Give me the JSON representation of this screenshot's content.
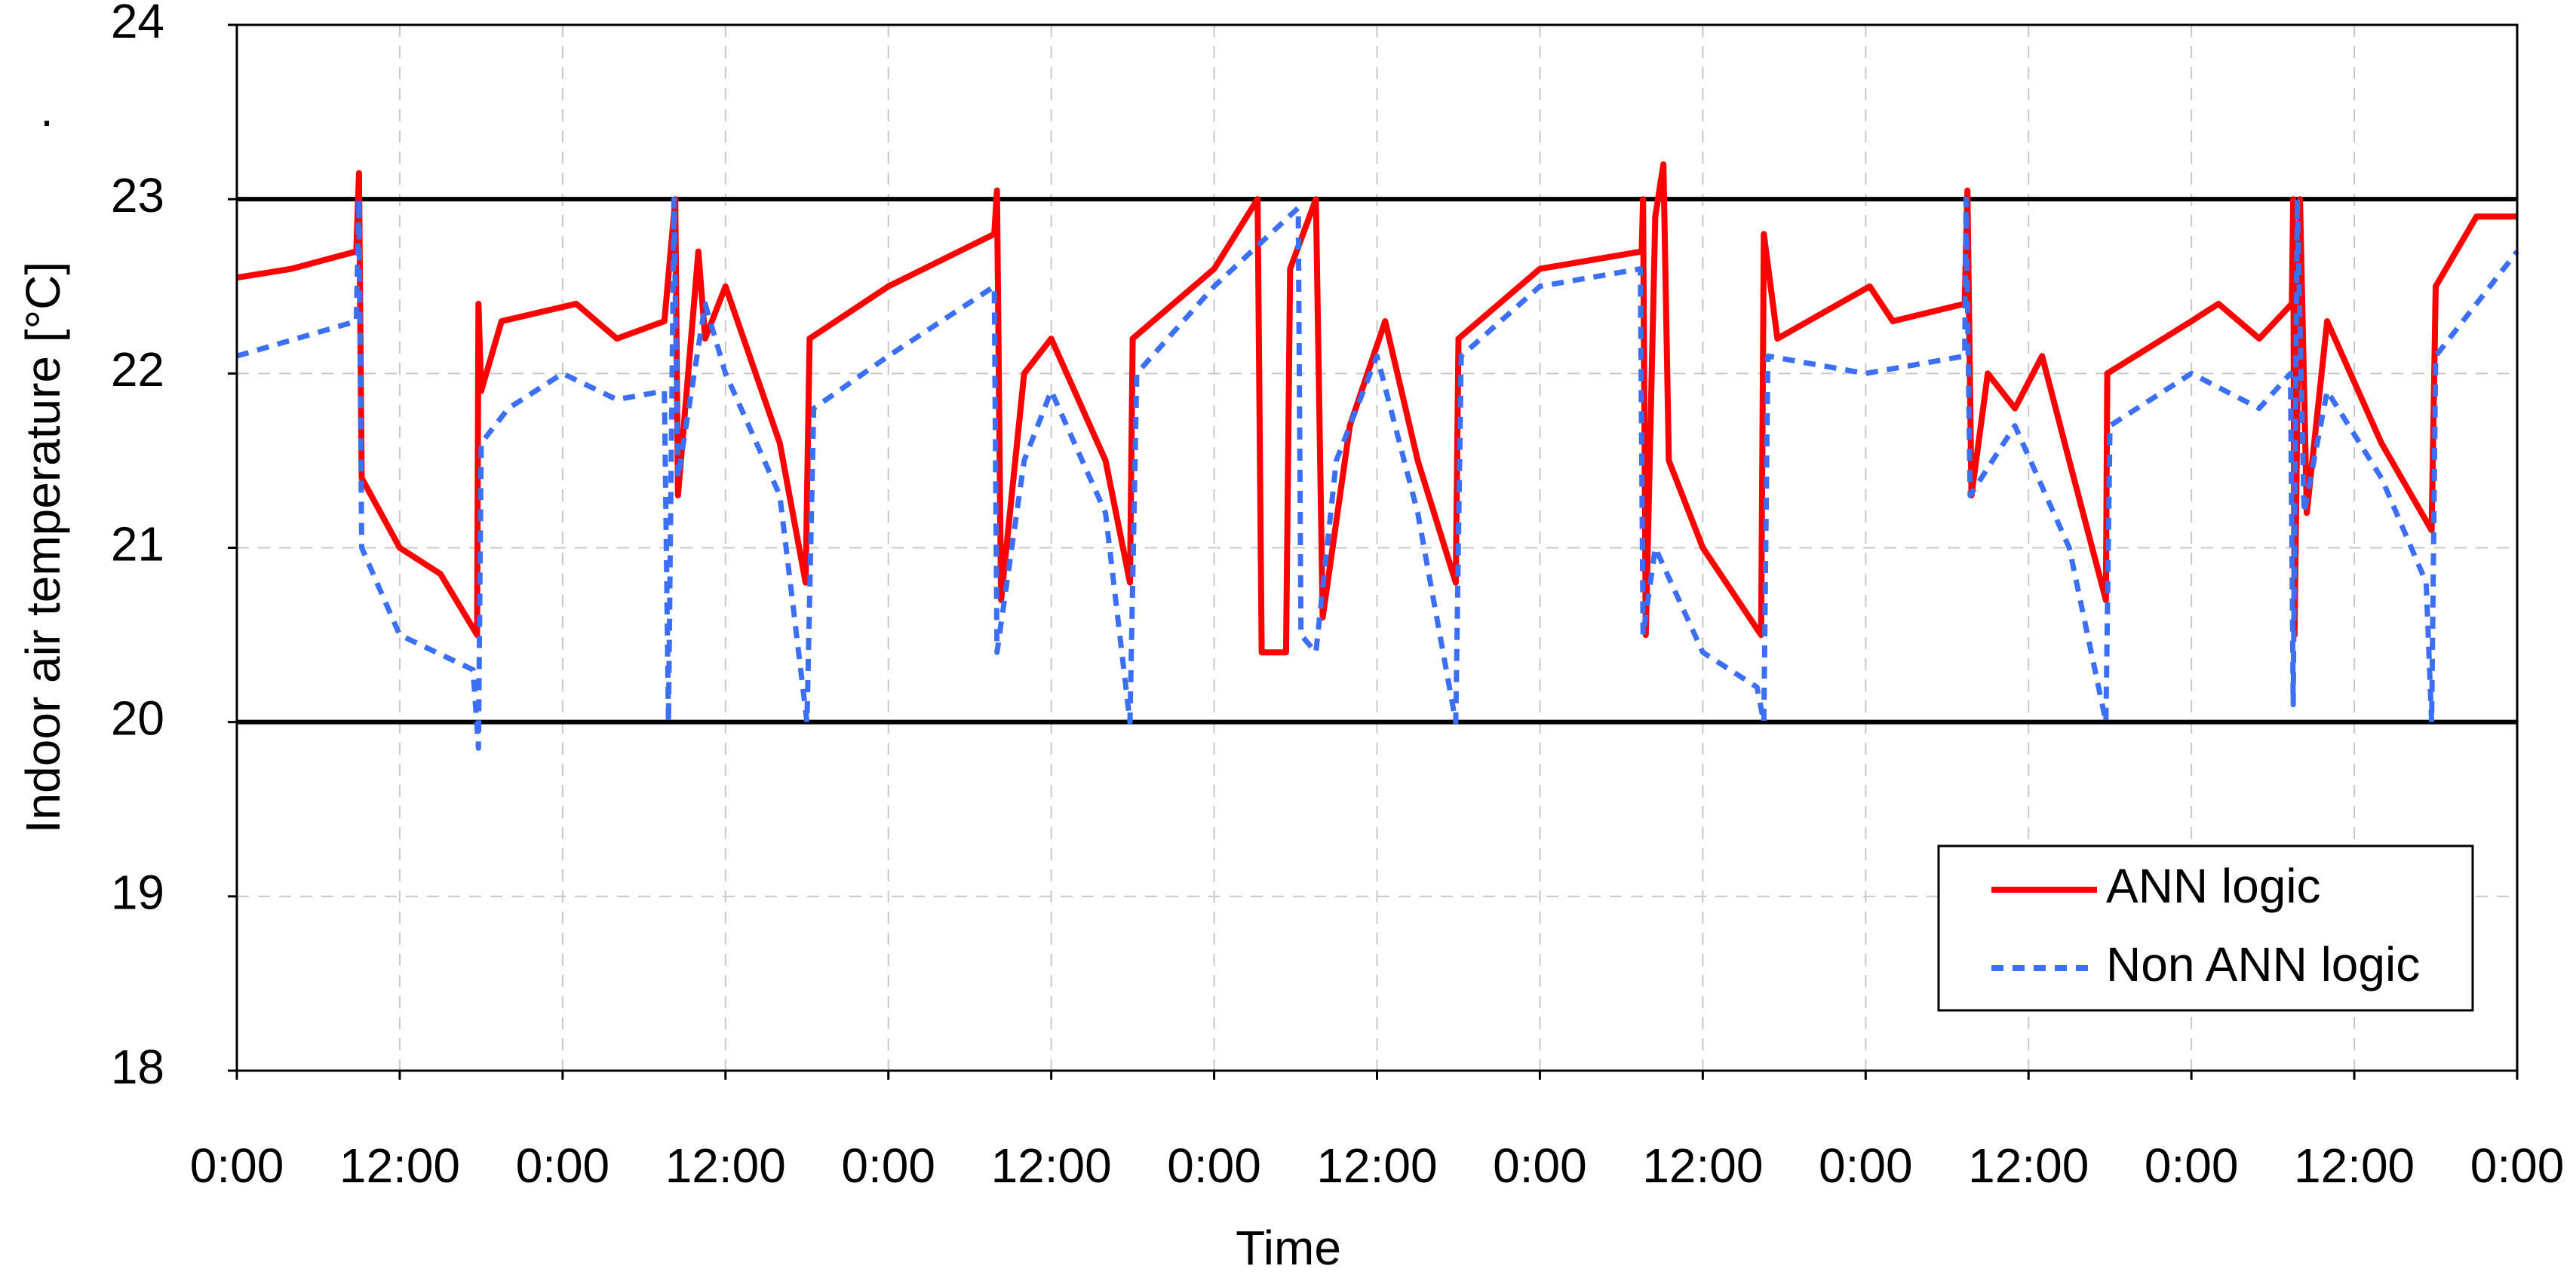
{
  "chart_data": {
    "type": "line",
    "x_label": "Time",
    "y_label": "Indoor air temperature [°C]",
    "annotation": ".",
    "xlim": [
      0,
      168
    ],
    "ylim": [
      18,
      24
    ],
    "xticks": [
      {
        "value": 0,
        "label": "0:00"
      },
      {
        "value": 12,
        "label": "12:00"
      },
      {
        "value": 24,
        "label": "0:00"
      },
      {
        "value": 36,
        "label": "12:00"
      },
      {
        "value": 48,
        "label": "0:00"
      },
      {
        "value": 60,
        "label": "12:00"
      },
      {
        "value": 72,
        "label": "0:00"
      },
      {
        "value": 84,
        "label": "12:00"
      },
      {
        "value": 96,
        "label": "0:00"
      },
      {
        "value": 108,
        "label": "12:00"
      },
      {
        "value": 120,
        "label": "0:00"
      },
      {
        "value": 132,
        "label": "12:00"
      },
      {
        "value": 144,
        "label": "0:00"
      },
      {
        "value": 156,
        "label": "12:00"
      },
      {
        "value": 168,
        "label": "0:00"
      }
    ],
    "yticks": [
      18,
      19,
      20,
      21,
      22,
      23,
      24
    ],
    "grid": true,
    "reference_lines": [
      20,
      23
    ],
    "legend": "lower right",
    "series": [
      {
        "name": "ANN logic",
        "color": "#ff0000",
        "dashed": false,
        "x": [
          0,
          4,
          8.8,
          9,
          9.2,
          12,
          15,
          17.7,
          17.8,
          18,
          19.5,
          25,
          28,
          31.5,
          32.3,
          32.5,
          34,
          34.5,
          36,
          40,
          41.9,
          42.2,
          48,
          55.8,
          56,
          56.3,
          58,
          60,
          64,
          65.8,
          66,
          72,
          75.2,
          75.5,
          77.3,
          77.6,
          79.5,
          80,
          82,
          84.6,
          87,
          89.8,
          90,
          96,
          103.5,
          103.6,
          103.8,
          104.5,
          105.1,
          105.5,
          108,
          112.3,
          112.5,
          113.5,
          120.3,
          122,
          127.3,
          127.5,
          127.8,
          129,
          131,
          133,
          135,
          137.7,
          137.8,
          144,
          146,
          149,
          151.4,
          151.5,
          151.6,
          152,
          152.5,
          154,
          158,
          161.7,
          162,
          165,
          168
        ],
        "values": [
          22.55,
          22.6,
          22.7,
          23.15,
          21.4,
          21.0,
          20.85,
          20.5,
          22.4,
          21.9,
          22.3,
          22.4,
          22.2,
          22.3,
          23.0,
          21.3,
          22.7,
          22.2,
          22.5,
          21.6,
          20.8,
          22.2,
          22.5,
          22.8,
          23.05,
          20.7,
          22.0,
          22.2,
          21.5,
          20.8,
          22.2,
          22.6,
          23.0,
          20.4,
          20.4,
          22.6,
          23.0,
          20.6,
          21.7,
          22.3,
          21.5,
          20.8,
          22.2,
          22.6,
          22.7,
          23.0,
          20.5,
          22.9,
          23.2,
          21.5,
          21.0,
          20.5,
          22.8,
          22.2,
          22.5,
          22.3,
          22.4,
          23.05,
          21.3,
          22.0,
          21.8,
          22.1,
          21.5,
          20.7,
          22.0,
          22.3,
          22.4,
          22.2,
          22.4,
          23.0,
          20.5,
          23.0,
          21.2,
          22.3,
          21.6,
          21.1,
          22.5,
          22.9,
          22.9
        ]
      },
      {
        "name": "Non ANN logic",
        "color": "#3b6ff5",
        "dashed": true,
        "x": [
          0,
          8.8,
          9,
          9.2,
          12,
          17.4,
          17.8,
          18,
          20,
          24,
          28,
          31.5,
          31.8,
          32.2,
          32.5,
          34.5,
          36,
          40,
          42,
          42.5,
          48,
          55.8,
          56,
          58,
          60,
          64,
          65.8,
          66.3,
          72,
          78.2,
          78.4,
          79.5,
          81,
          84,
          87,
          89.8,
          90.2,
          96,
          103.4,
          103.6,
          104.5,
          108,
          112,
          112.5,
          112.8,
          120,
          127.3,
          127.4,
          127.7,
          131,
          135,
          137.7,
          138,
          144,
          149,
          151.3,
          151.5,
          151.8,
          152.3,
          154,
          158,
          161.3,
          161.7,
          162,
          168
        ],
        "values": [
          22.1,
          22.3,
          23.0,
          21.0,
          20.5,
          20.3,
          19.85,
          21.6,
          21.8,
          22.0,
          21.85,
          21.9,
          20.0,
          23.0,
          21.4,
          22.4,
          22.0,
          21.3,
          20.0,
          21.8,
          22.1,
          22.5,
          20.4,
          21.5,
          21.9,
          21.2,
          20.0,
          22.0,
          22.5,
          22.95,
          20.5,
          20.4,
          21.5,
          22.1,
          21.2,
          20.0,
          22.1,
          22.5,
          22.6,
          20.5,
          21.0,
          20.4,
          20.2,
          20.0,
          22.1,
          22.0,
          22.1,
          23.0,
          21.3,
          21.7,
          21.0,
          20.0,
          21.7,
          22.0,
          21.8,
          22.0,
          20.1,
          23.0,
          21.2,
          21.9,
          21.4,
          20.8,
          20.0,
          22.1,
          22.7
        ]
      }
    ]
  }
}
